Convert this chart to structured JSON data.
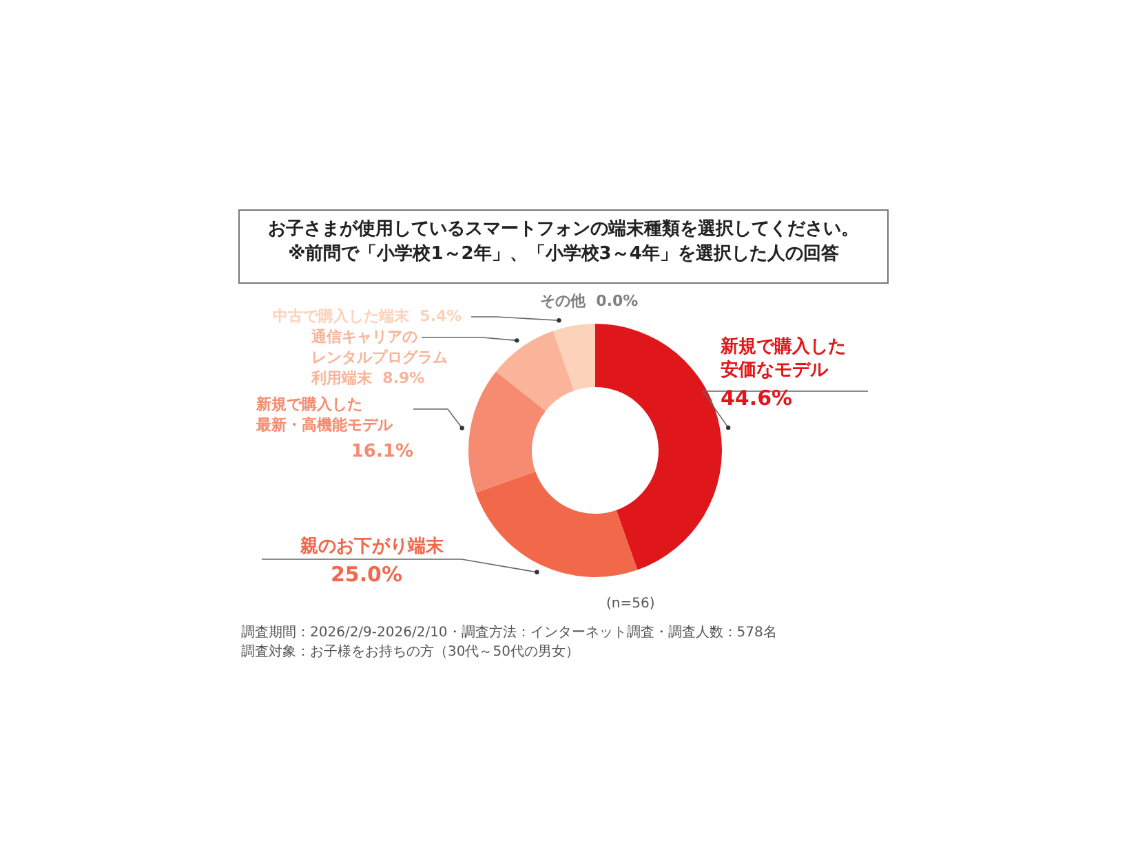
{
  "chart_data": {
    "type": "donut",
    "title": "お子さまが使用しているスマートフォンの端末種類を選択してください。",
    "subtitle": "※前問で「小学校1～2年」、「小学校3～4年」を選択した人の回答",
    "categories": [
      "新規で購入した安価なモデル",
      "親のお下がり端末",
      "新規で購入した最新・高機能モデル",
      "通信キャリアのレンタルプログラム利用端末",
      "中古で購入した端末",
      "その他"
    ],
    "values": [
      44.6,
      25.0,
      16.1,
      8.9,
      5.4,
      0.0
    ],
    "value_labels": [
      "44.6%",
      "25.0%",
      "16.1%",
      "8.9%",
      "5.4%",
      "0.0%"
    ],
    "colors": [
      "#e0171a",
      "#f2684a",
      "#f58b70",
      "#f9b49a",
      "#fcd2ba",
      "#808080"
    ],
    "legend": false,
    "annotations": [
      "(n=56)",
      "調査期間：2026/2/9-2026/2/10・調査方法：インターネット調査・調査人数：578名",
      "調査対象：お子様をお持ちの方（30代～50代の男女）"
    ]
  }
}
